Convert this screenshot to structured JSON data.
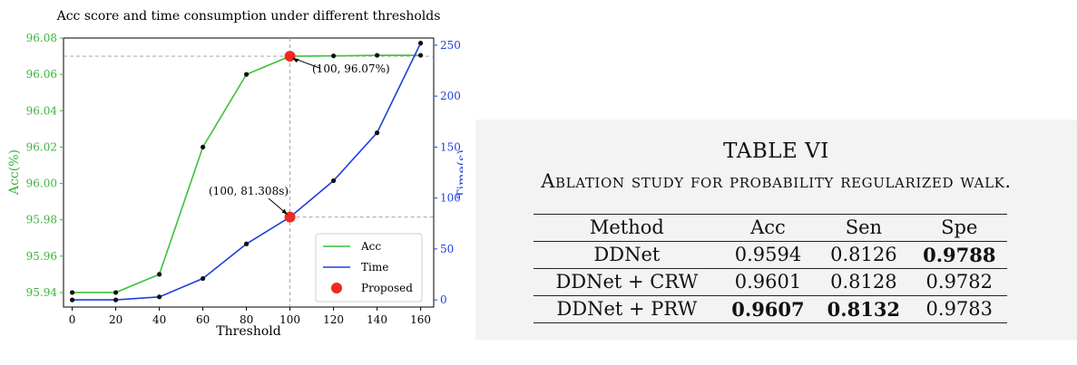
{
  "chart_data": {
    "type": "line",
    "title": "Acc score and time consumption under different thresholds",
    "xlabel": "Threshold",
    "ylabel_left": "Acc(%)",
    "ylabel_right": "Time(s)",
    "x": [
      0,
      20,
      40,
      60,
      80,
      100,
      120,
      140,
      160
    ],
    "x_ticks": [
      "0",
      "20",
      "40",
      "60",
      "80",
      "100",
      "120",
      "140",
      "160"
    ],
    "xlim": [
      -4,
      166
    ],
    "ylim_left": [
      95.932,
      96.08
    ],
    "yticks_left": [
      "95.94",
      "95.96",
      "95.98",
      "96.00",
      "96.02",
      "96.04",
      "96.06",
      "96.08"
    ],
    "ylim_right": [
      -7,
      257
    ],
    "yticks_right": [
      "0",
      "50",
      "100",
      "150",
      "200",
      "250"
    ],
    "series": [
      {
        "name": "Acc",
        "axis": "left",
        "color": "#3cc23c",
        "values": [
          95.94,
          95.94,
          95.95,
          96.02,
          96.06,
          96.07,
          96.0702,
          96.0705,
          96.0705
        ]
      },
      {
        "name": "Time",
        "axis": "right",
        "color": "#1f3fe0",
        "values": [
          0,
          0,
          3,
          21,
          55,
          81.308,
          117,
          164,
          252
        ]
      }
    ],
    "proposed": {
      "name": "Proposed",
      "x": 100,
      "color": "#f02a20",
      "acc": 96.07,
      "time": 81.308
    },
    "annotations": [
      {
        "text": "(100, 96.07%)",
        "axis": "left",
        "x": 100,
        "y": 96.07
      },
      {
        "text": "(100, 81.308s)",
        "axis": "right",
        "x": 100,
        "y": 81.308
      }
    ],
    "legend": {
      "placement": "bottom-right"
    }
  },
  "table": {
    "number": "TABLE VI",
    "caption": "Ablation study for probability regularized walk.",
    "columns": [
      "Method",
      "Acc",
      "Sen",
      "Spe"
    ],
    "rows": [
      {
        "method": "DDNet",
        "acc": "0.9594",
        "sen": "0.8126",
        "spe": "0.9788"
      },
      {
        "method": "DDNet + CRW",
        "acc": "0.9601",
        "sen": "0.8128",
        "spe": "0.9782"
      },
      {
        "method": "DDNet + PRW",
        "acc": "0.9607",
        "sen": "0.8132",
        "spe": "0.9783"
      }
    ]
  }
}
